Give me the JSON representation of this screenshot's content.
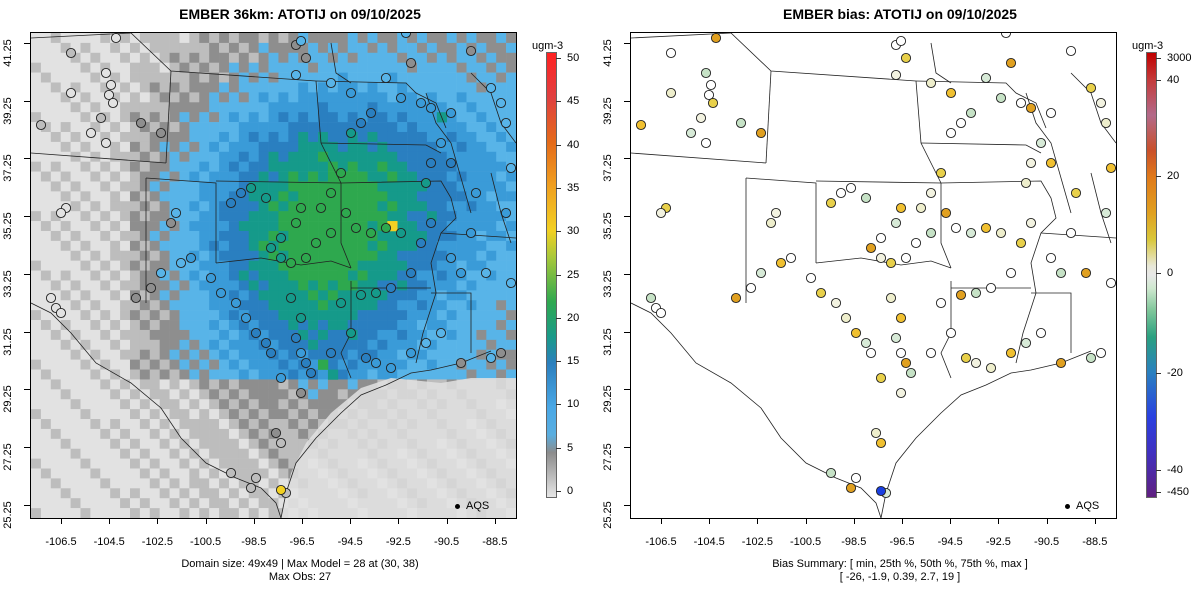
{
  "left_panel": {
    "title": "EMBER 36km: ATOTIJ on 09/10/2025",
    "colorbar_unit": "ugm-3",
    "colorbar_ticks": [
      "50",
      "45",
      "40",
      "35",
      "30",
      "25",
      "20",
      "15",
      "10",
      "5",
      "0"
    ],
    "colorbar_stops": [
      {
        "v": 0,
        "c": "#e6e6e6"
      },
      {
        "v": 5,
        "c": "#8c8c8c"
      },
      {
        "v": 7,
        "c": "#5aaee0"
      },
      {
        "v": 10,
        "c": "#4aa8e6"
      },
      {
        "v": 15,
        "c": "#2b7fbe"
      },
      {
        "v": 18,
        "c": "#1a9a8a"
      },
      {
        "v": 22,
        "c": "#2fa84f"
      },
      {
        "v": 27,
        "c": "#a8c83a"
      },
      {
        "v": 30,
        "c": "#f2d023"
      },
      {
        "v": 35,
        "c": "#f0a020"
      },
      {
        "v": 40,
        "c": "#e46a1a"
      },
      {
        "v": 45,
        "c": "#e04040"
      },
      {
        "v": 50,
        "c": "#ff2222"
      }
    ],
    "legend_label": "AQS",
    "caption_lines": [
      "Domain size: 49x49 | Max Model = 28 at (30, 38)",
      "Max Obs: 27"
    ]
  },
  "right_panel": {
    "title": "EMBER bias: ATOTIJ on 09/10/2025",
    "colorbar_unit": "ugm-3",
    "colorbar_ticks": [
      "3000",
      "40",
      "20",
      "0",
      "-20",
      "-40",
      "-450"
    ],
    "legend_label": "AQS",
    "caption_lines": [
      "Bias Summary: [ min, 25th %, 50th %, 75th %, max ]",
      "[ -26,   -1.9,   0.39,   2.7,   19 ]"
    ]
  },
  "axes": {
    "y_ticks": [
      "41.25",
      "39.25",
      "37.25",
      "35.25",
      "33.25",
      "31.25",
      "29.25",
      "27.25",
      "25.25"
    ],
    "x_ticks": [
      "-106.5",
      "-104.5",
      "-102.5",
      "-100.5",
      "-98.5",
      "-96.5",
      "-94.5",
      "-92.5",
      "-90.5",
      "-88.5"
    ]
  },
  "colors": {
    "state_line": "#222222",
    "grid_light": "#e2e2e2",
    "grid_mid": "#bdbdbd",
    "grid_dark": "#8e8e8e",
    "blue_light": "#58b4e8",
    "blue_mid": "#3a9bd8",
    "blue_dark": "#2a7fc0",
    "teal": "#159a8a",
    "green": "#2ea84e",
    "yellow": "#f2d023"
  }
}
